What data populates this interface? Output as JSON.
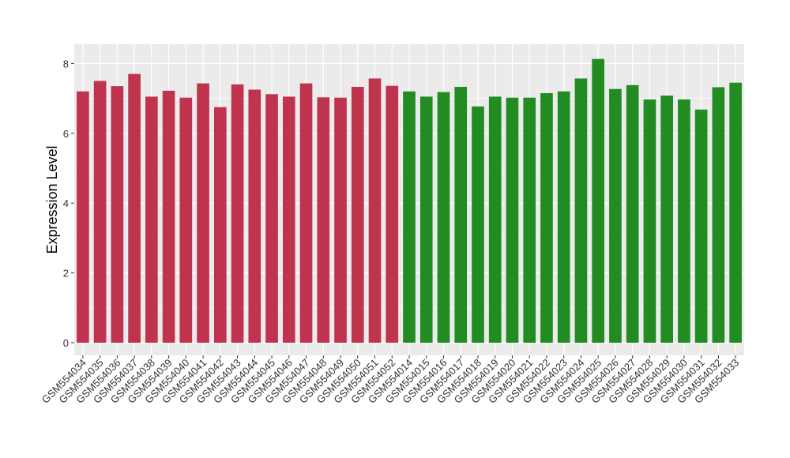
{
  "chart_data": {
    "type": "bar",
    "title": "",
    "xlabel": "",
    "ylabel": "Expression Level",
    "ylim": [
      0,
      8.5
    ],
    "yticks": [
      0,
      2,
      4,
      6,
      8
    ],
    "grid": true,
    "panel_background": "#EBEBEB",
    "colors": {
      "group_a": "#C0334D",
      "group_b": "#228B22"
    },
    "categories": [
      "GSM554034",
      "GSM554035",
      "GSM554036",
      "GSM554037",
      "GSM554038",
      "GSM554039",
      "GSM554040",
      "GSM554041",
      "GSM554042",
      "GSM554043",
      "GSM554044",
      "GSM554045",
      "GSM554046",
      "GSM554047",
      "GSM554048",
      "GSM554049",
      "GSM554050",
      "GSM554051",
      "GSM554052",
      "GSM554014",
      "GSM554015",
      "GSM554016",
      "GSM554017",
      "GSM554018",
      "GSM554019",
      "GSM554020",
      "GSM554021",
      "GSM554022",
      "GSM554023",
      "GSM554024",
      "GSM554025",
      "GSM554026",
      "GSM554027",
      "GSM554028",
      "GSM554029",
      "GSM554030",
      "GSM554031",
      "GSM554032",
      "GSM554033"
    ],
    "values": [
      7.2,
      7.5,
      7.35,
      7.7,
      7.05,
      7.22,
      7.02,
      7.43,
      6.75,
      7.4,
      7.25,
      7.12,
      7.05,
      7.43,
      7.03,
      7.02,
      7.33,
      7.57,
      7.36,
      7.2,
      7.05,
      7.18,
      7.33,
      6.77,
      7.05,
      7.02,
      7.02,
      7.15,
      7.2,
      7.57,
      8.13,
      7.27,
      7.38,
      6.97,
      7.08,
      6.97,
      6.68,
      7.32,
      7.45
    ],
    "groups": [
      "a",
      "a",
      "a",
      "a",
      "a",
      "a",
      "a",
      "a",
      "a",
      "a",
      "a",
      "a",
      "a",
      "a",
      "a",
      "a",
      "a",
      "a",
      "a",
      "b",
      "b",
      "b",
      "b",
      "b",
      "b",
      "b",
      "b",
      "b",
      "b",
      "b",
      "b",
      "b",
      "b",
      "b",
      "b",
      "b",
      "b",
      "b",
      "b"
    ]
  }
}
